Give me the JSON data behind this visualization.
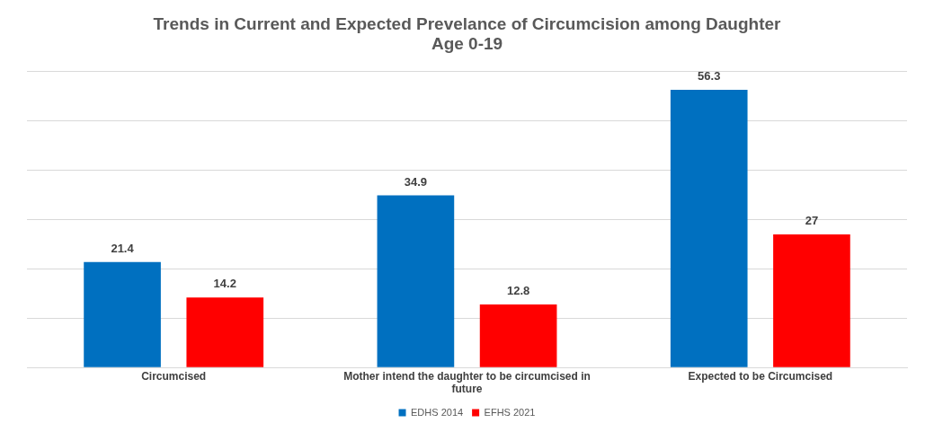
{
  "chart_data": {
    "type": "bar",
    "title": "Trends in Current and Expected Prevelance of Circumcision among Daughter\nAge 0-19",
    "categories": [
      "Circumcised",
      "Mother intend the daughter to be circumcised in future",
      "Expected to be Circumcised"
    ],
    "series": [
      {
        "name": "EDHS 2014",
        "color": "#0070c0",
        "values": [
          21.4,
          34.9,
          56.3
        ]
      },
      {
        "name": "EFHS 2021",
        "color": "#ff0000",
        "values": [
          14.2,
          12.8,
          27
        ]
      }
    ],
    "ylim": [
      0,
      60
    ],
    "yticks": [
      {
        "value": 0,
        "label": null
      },
      {
        "value": 10,
        "label": null
      },
      {
        "value": 20,
        "label": null
      },
      {
        "value": 30,
        "label": null
      },
      {
        "value": 40,
        "label": null
      },
      {
        "value": 50,
        "label": null
      },
      {
        "value": 60,
        "label": null
      }
    ],
    "grid": "y",
    "tick_labels": "x",
    "legend": "bottom",
    "data_labels": true
  }
}
